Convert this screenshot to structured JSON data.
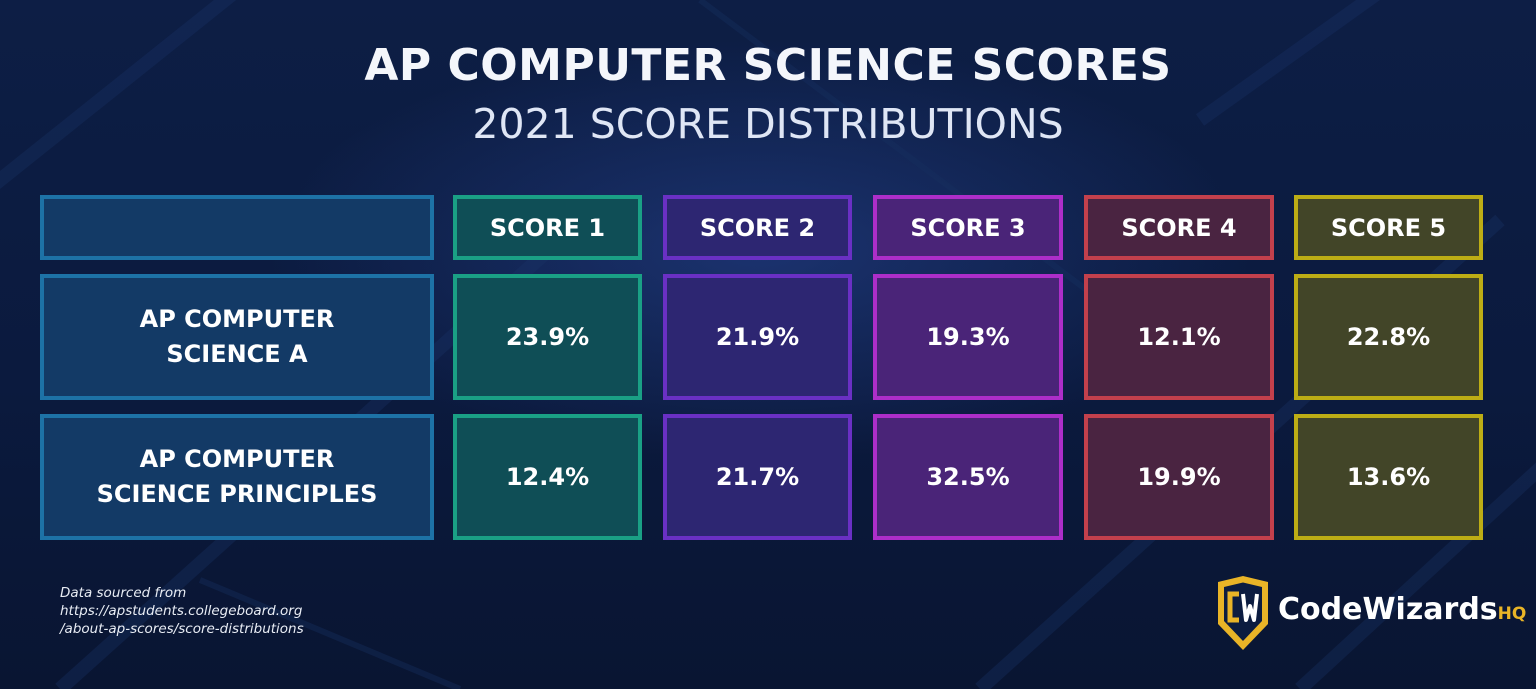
{
  "title": "AP COMPUTER SCIENCE SCORES",
  "subtitle": "2021 SCORE DISTRIBUTIONS",
  "chart_data": {
    "type": "table",
    "title": "AP COMPUTER SCIENCE SCORES",
    "subtitle": "2021 SCORE DISTRIBUTIONS",
    "columns": [
      "SCORE 1",
      "SCORE 2",
      "SCORE 3",
      "SCORE 4",
      "SCORE 5"
    ],
    "rows": [
      {
        "label_line1": "AP COMPUTER",
        "label_line2": "SCIENCE A",
        "values": [
          "23.9%",
          "21.9%",
          "19.3%",
          "12.1%",
          "22.8%"
        ]
      },
      {
        "label_line1": "AP COMPUTER",
        "label_line2": "SCIENCE PRINCIPLES",
        "values": [
          "12.4%",
          "21.7%",
          "32.5%",
          "19.9%",
          "13.6%"
        ]
      }
    ],
    "column_colors": [
      "#1aa085",
      "#6a30c4",
      "#ad2ec9",
      "#c3404c",
      "#bdad15"
    ],
    "label_color": "#1d72a6"
  },
  "footnote": {
    "line1": "Data sourced from",
    "line2": "https://apstudents.collegeboard.org",
    "line3": "/about-ap-scores/score-distributions"
  },
  "logo": {
    "name": "CodeWizards",
    "suffix": "HQ",
    "icon": "shield-cw-icon",
    "accent": "#e9b427"
  }
}
